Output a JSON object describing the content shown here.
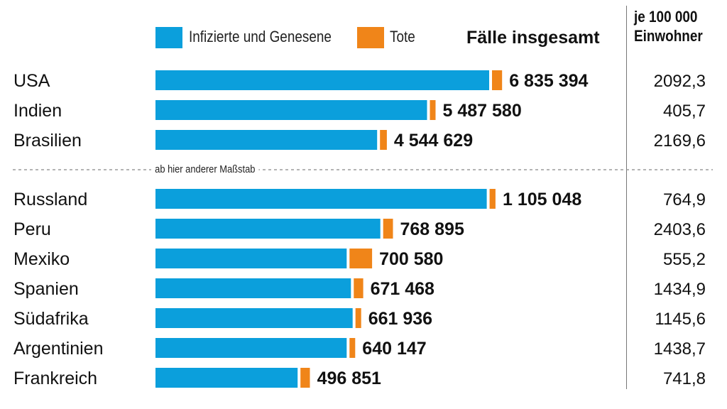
{
  "legend": {
    "infected_label": "Infizierte und Genesene",
    "deaths_label": "Tote",
    "total_header": "Fälle insgesamt",
    "per_capita_header_line1": "je 100 000",
    "per_capita_header_line2": "Einwohner"
  },
  "scale_note": "ab hier anderer Maßstab",
  "colors": {
    "infected": "#0b9fdc",
    "deaths": "#f08519",
    "text": "#111111",
    "divider": "#777777"
  },
  "chart_data": {
    "type": "bar",
    "orientation": "horizontal",
    "stacked": true,
    "categories": [
      "USA",
      "Indien",
      "Brasilien",
      "Russland",
      "Peru",
      "Mexiko",
      "Spanien",
      "Südafrika",
      "Argentinien",
      "Frankreich"
    ],
    "totals_label": [
      "6 835 394",
      "5 487 580",
      "4 544 629",
      "1 105 048",
      "768 895",
      "700 580",
      "671 468",
      "661 936",
      "640 147",
      "496 851"
    ],
    "totals": [
      6835394,
      5487580,
      4544629,
      1105048,
      768895,
      700580,
      671468,
      661936,
      640147,
      496851
    ],
    "deaths_estimate": [
      200000,
      88000,
      137000,
      19400,
      32000,
      74000,
      31000,
      15900,
      13500,
      31000
    ],
    "per_100000_label": [
      "2092,3",
      "405,7",
      "2169,6",
      "764,9",
      "2403,6",
      "555,2",
      "1434,9",
      "1145,6",
      "1438,7",
      "741,8"
    ],
    "groups": [
      {
        "rows": [
          0,
          1,
          2
        ],
        "xlim": [
          0,
          7200000
        ]
      },
      {
        "rows": [
          3,
          4,
          5,
          6,
          7,
          8,
          9
        ],
        "xlim": [
          0,
          1140000
        ]
      }
    ],
    "series": [
      {
        "name": "Infizierte und Genesene"
      },
      {
        "name": "Tote"
      }
    ]
  }
}
